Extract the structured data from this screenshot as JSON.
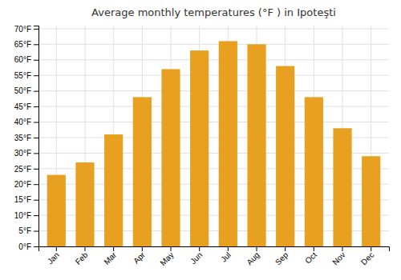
{
  "chart_data": {
    "type": "bar",
    "title": "Average monthly temperatures (°F ) in Ipoteşti",
    "categories": [
      "Jan",
      "Feb",
      "Mar",
      "Apr",
      "May",
      "Jun",
      "Jul",
      "Aug",
      "Sep",
      "Oct",
      "Nov",
      "Dec"
    ],
    "values": [
      23,
      27,
      36,
      48,
      57,
      63,
      66,
      65,
      58,
      48,
      38,
      29
    ],
    "color": "#E8A020",
    "ylim": [
      0,
      71
    ],
    "yticks": [
      {
        "value": 0,
        "label": "0°F"
      },
      {
        "value": 5,
        "label": "5°F"
      },
      {
        "value": 10,
        "label": "10°F"
      },
      {
        "value": 15,
        "label": "15°F"
      },
      {
        "value": 20,
        "label": "20°F"
      },
      {
        "value": 25,
        "label": "25°F"
      },
      {
        "value": 30,
        "label": "30°F"
      },
      {
        "value": 35,
        "label": "35°F"
      },
      {
        "value": 40,
        "label": "40°F"
      },
      {
        "value": 45,
        "label": "45°F"
      },
      {
        "value": 50,
        "label": "50°F"
      },
      {
        "value": 55,
        "label": "55°F"
      },
      {
        "value": 60,
        "label": "60°F"
      },
      {
        "value": 65,
        "label": "65°F"
      },
      {
        "value": 70,
        "label": "70°F"
      }
    ],
    "grid": true
  }
}
